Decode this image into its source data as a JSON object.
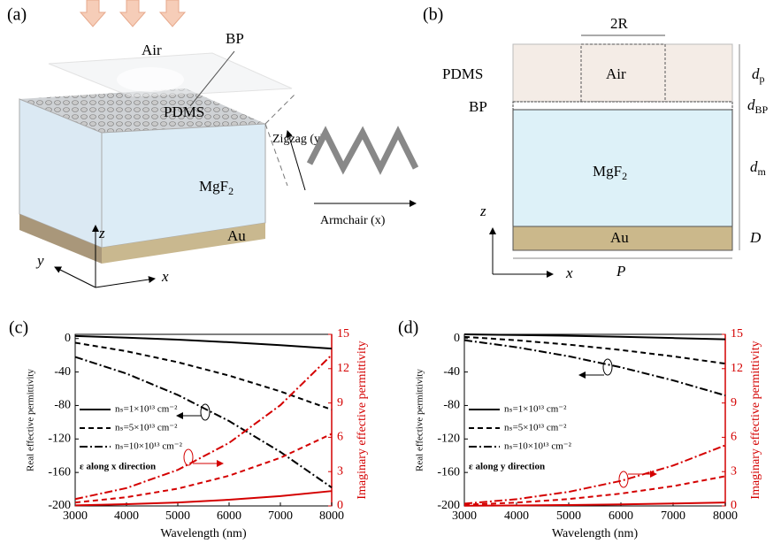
{
  "diagrams": {
    "a": {
      "label": "(a)",
      "air": "Air",
      "bp": "BP",
      "pdms": "PDMS",
      "mgf2": {
        "text": "MgF",
        "sub": "2"
      },
      "au": "Au",
      "zigzag": "Zigzag (y)",
      "armchair": "Armchair (x)",
      "axis_z": "z",
      "axis_y": "y",
      "axis_x": "x"
    },
    "b": {
      "label": "(b)",
      "radius": "2R",
      "pdms": "PDMS",
      "air": "Air",
      "bp": "BP",
      "mgf2": {
        "text": "MgF",
        "sub": "2"
      },
      "dp": {
        "text": "d",
        "sub": "p"
      },
      "dbp": {
        "text": "d",
        "sub": "BP"
      },
      "dm": {
        "text": "d",
        "sub": "m"
      },
      "au": "Au",
      "d": "D",
      "p": "P",
      "axis_z": "z",
      "axis_x": "x"
    }
  },
  "chart_data": [
    {
      "type": "line",
      "panel": "(c)",
      "xlabel": "Wavelength (nm)",
      "ylabel": "Real effective permittivity",
      "y2label": "Imaginary effective permittivity",
      "annotation": "ε along x direction",
      "x": [
        3000,
        4000,
        5000,
        6000,
        7000,
        8000
      ],
      "xlim": [
        3000,
        8000
      ],
      "xticks": [
        3000,
        4000,
        5000,
        6000,
        7000,
        8000
      ],
      "ylim": [
        -200,
        5
      ],
      "yticks": [
        0,
        -40,
        -80,
        -120,
        -160,
        -200
      ],
      "y2lim": [
        0,
        15
      ],
      "y2ticks": [
        0,
        3,
        6,
        9,
        12,
        15
      ],
      "series": [
        {
          "name": "nₛ=1×10¹³ cm⁻²",
          "color": "#000000",
          "style": "solid",
          "values": [
            3,
            1.1,
            -1.4,
            -4.4,
            -7.9,
            -12
          ]
        },
        {
          "name": "nₛ=5×10¹³ cm⁻²",
          "color": "#000000",
          "style": "dashed",
          "values": [
            -5,
            -15.2,
            -28.3,
            -44.3,
            -63.2,
            -85
          ]
        },
        {
          "name": "nₛ=10×10¹³ cm⁻²",
          "color": "#000000",
          "style": "dashdot",
          "values": [
            -22,
            -41.9,
            -67.4,
            -98.6,
            -135.5,
            -178
          ]
        },
        {
          "color": "#d40000",
          "style": "solid",
          "axis": "y2",
          "values": [
            0.05,
            0.15,
            0.3,
            0.54,
            0.86,
            1.3
          ]
        },
        {
          "color": "#d40000",
          "style": "dashed",
          "axis": "y2",
          "values": [
            0.3,
            0.76,
            1.51,
            2.64,
            4.21,
            6.3
          ]
        },
        {
          "color": "#d40000",
          "style": "dashdot",
          "axis": "y2",
          "values": [
            0.6,
            1.56,
            3.15,
            5.51,
            8.81,
            13.2
          ]
        }
      ]
    },
    {
      "type": "line",
      "panel": "(d)",
      "xlabel": "Wavelength (nm)",
      "ylabel": "Real effective permittivity",
      "y2label": "Imaginary effective permittivity",
      "annotation": "ε along y direction",
      "x": [
        3000,
        4000,
        5000,
        6000,
        7000,
        8000
      ],
      "xlim": [
        3000,
        8000
      ],
      "xticks": [
        3000,
        4000,
        5000,
        6000,
        7000,
        8000
      ],
      "ylim": [
        -200,
        5
      ],
      "yticks": [
        0,
        -40,
        -80,
        -120,
        -160,
        -200
      ],
      "y2lim": [
        0,
        15
      ],
      "y2ticks": [
        0,
        3,
        6,
        9,
        12,
        15
      ],
      "series": [
        {
          "name": "nₛ=1×10¹³ cm⁻²",
          "color": "#000000",
          "style": "solid",
          "values": [
            5,
            4.2,
            3.3,
            2.1,
            0.6,
            -1
          ]
        },
        {
          "name": "nₛ=5×10¹³ cm⁻²",
          "color": "#000000",
          "style": "dashed",
          "values": [
            2,
            -2.1,
            -7.3,
            -13.7,
            -21.3,
            -30
          ]
        },
        {
          "name": "nₛ=10×10¹³ cm⁻²",
          "color": "#000000",
          "style": "dashdot",
          "values": [
            -2,
            -10.4,
            -21.2,
            -34.4,
            -50,
            -68
          ]
        },
        {
          "color": "#d40000",
          "style": "solid",
          "axis": "y2",
          "values": [
            0.02,
            0.04,
            0.08,
            0.14,
            0.21,
            0.3
          ]
        },
        {
          "color": "#d40000",
          "style": "dashed",
          "axis": "y2",
          "values": [
            0.1,
            0.29,
            0.6,
            1.08,
            1.73,
            2.6
          ]
        },
        {
          "color": "#d40000",
          "style": "dashdot",
          "axis": "y2",
          "values": [
            0.2,
            0.59,
            1.23,
            2.19,
            3.53,
            5.3
          ]
        }
      ]
    }
  ]
}
